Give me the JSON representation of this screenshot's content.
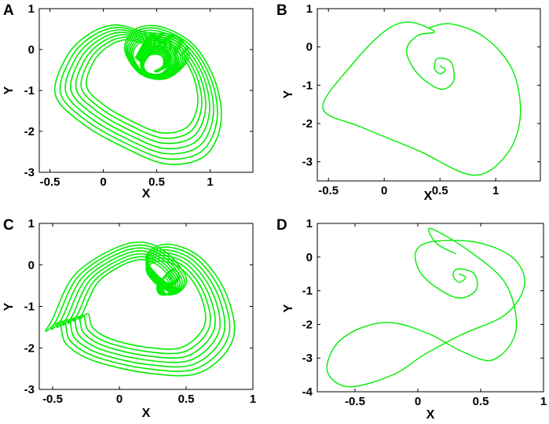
{
  "colors": {
    "trajectory": "#00ee00",
    "axes": "#000000",
    "background": "#ffffff"
  },
  "chart_data": [
    {
      "panel": "A",
      "type": "line",
      "description_series": "phase portrait, chaotic attractor with dense winding",
      "xlabel": "X",
      "ylabel": "Y",
      "xlim": [
        -0.6,
        1.4
      ],
      "ylim": [
        -3,
        1
      ],
      "xticks": [
        -0.5,
        0,
        0.5,
        1
      ],
      "yticks": [
        1,
        0,
        -1,
        -2,
        -3
      ],
      "grid": false,
      "series": [
        {
          "x": [
            0.5,
            0.62,
            0.6,
            0.45,
            0.35,
            0.4,
            0.58,
            0.7,
            0.62,
            0.35,
            0.1,
            -0.15,
            -0.35,
            -0.45,
            -0.2,
            0.2,
            0.6,
            0.95,
            1.1,
            1.05,
            0.85,
            0.55,
            0.3,
            0.2,
            0.35,
            0.6,
            0.8,
            0.7,
            0.45,
            0.3
          ],
          "y": [
            -0.55,
            -0.35,
            0.0,
            0.05,
            -0.3,
            -0.6,
            -0.65,
            -0.3,
            0.2,
            0.45,
            0.6,
            0.35,
            -0.2,
            -1.1,
            -1.8,
            -2.4,
            -2.8,
            -2.6,
            -1.8,
            -0.8,
            0.1,
            0.55,
            0.5,
            0.0,
            -0.6,
            -0.7,
            -0.2,
            0.3,
            0.35,
            -0.2
          ]
        }
      ]
    },
    {
      "panel": "B",
      "type": "line",
      "description_series": "phase portrait, single periodic loop",
      "xlabel": "X",
      "ylabel": "Y",
      "xlim": [
        -0.6,
        1.4
      ],
      "ylim": [
        -3.5,
        1
      ],
      "xticks": [
        -0.5,
        0,
        0.5,
        1
      ],
      "yticks": [
        1,
        0,
        -1,
        -2,
        -3
      ],
      "grid": false,
      "series": [
        {
          "x": [
            0.5,
            0.55,
            0.5,
            0.45,
            0.48,
            0.6,
            0.62,
            0.5,
            0.3,
            0.2,
            0.3,
            0.45,
            0.22,
            0.0,
            -0.3,
            -0.55,
            -0.2,
            0.3,
            0.8,
            1.1,
            1.22,
            1.15,
            0.9,
            0.6,
            0.4
          ],
          "y": [
            -0.5,
            -0.6,
            -0.7,
            -0.55,
            -0.3,
            -0.4,
            -0.9,
            -1.1,
            -0.7,
            -0.1,
            0.3,
            0.4,
            0.65,
            0.4,
            -0.5,
            -1.6,
            -2.1,
            -2.7,
            -3.35,
            -2.8,
            -1.8,
            -0.6,
            0.25,
            0.6,
            0.5
          ]
        }
      ]
    },
    {
      "panel": "C",
      "type": "line",
      "description_series": "phase portrait, chaotic attractor with secondary lobe",
      "xlabel": "X",
      "ylabel": "Y",
      "xlim": [
        -0.6,
        1.0
      ],
      "ylim": [
        -3,
        1
      ],
      "xticks": [
        -0.5,
        0,
        0.5,
        1
      ],
      "yticks": [
        1,
        0,
        -1,
        -2,
        -3
      ],
      "grid": false,
      "series": [
        {
          "x": [
            0.4,
            0.45,
            0.4,
            0.32,
            0.35,
            0.45,
            0.5,
            0.35,
            0.15,
            -0.1,
            -0.35,
            -0.5,
            -0.55,
            -0.45,
            -0.4,
            -0.2,
            0.2,
            0.6,
            0.85,
            0.8,
            0.6,
            0.35,
            0.2,
            0.3,
            0.45
          ],
          "y": [
            -0.5,
            -0.3,
            -0.1,
            -0.4,
            -0.7,
            -0.65,
            -0.3,
            0.3,
            0.55,
            0.3,
            -0.3,
            -1.3,
            -1.6,
            -1.4,
            -1.9,
            -2.3,
            -2.6,
            -2.6,
            -1.8,
            -0.7,
            0.2,
            0.5,
            0.2,
            -0.3,
            -0.6
          ]
        }
      ]
    },
    {
      "panel": "D",
      "type": "line",
      "description_series": "phase portrait, figure-eight periodic orbit",
      "xlabel": "X",
      "ylabel": "Y",
      "xlim": [
        -0.8,
        1.0
      ],
      "ylim": [
        -4,
        1
      ],
      "xticks": [
        -0.5,
        0,
        0.5,
        1
      ],
      "yticks": [
        1,
        0,
        -1,
        -2,
        -3,
        -4
      ],
      "grid": false,
      "series": [
        {
          "x": [
            0.33,
            0.38,
            0.33,
            0.28,
            0.32,
            0.45,
            0.46,
            0.3,
            0.05,
            -0.02,
            0.1,
            0.45,
            0.75,
            0.85,
            0.7,
            0.35,
            0.05,
            -0.2,
            -0.55,
            -0.72,
            -0.65,
            -0.45,
            -0.2,
            0.1,
            0.35,
            0.6,
            0.78,
            0.7,
            0.4,
            0.1,
            0.15,
            0.3
          ],
          "y": [
            -0.5,
            -0.6,
            -0.75,
            -0.55,
            -0.35,
            -0.5,
            -1.0,
            -1.2,
            -0.6,
            0.1,
            0.45,
            0.45,
            0.0,
            -0.8,
            -1.7,
            -2.3,
            -2.9,
            -3.5,
            -3.85,
            -3.4,
            -2.6,
            -2.1,
            -1.95,
            -2.3,
            -2.8,
            -3.05,
            -2.2,
            -0.8,
            0.2,
            0.85,
            0.4,
            0.1
          ]
        }
      ]
    }
  ]
}
